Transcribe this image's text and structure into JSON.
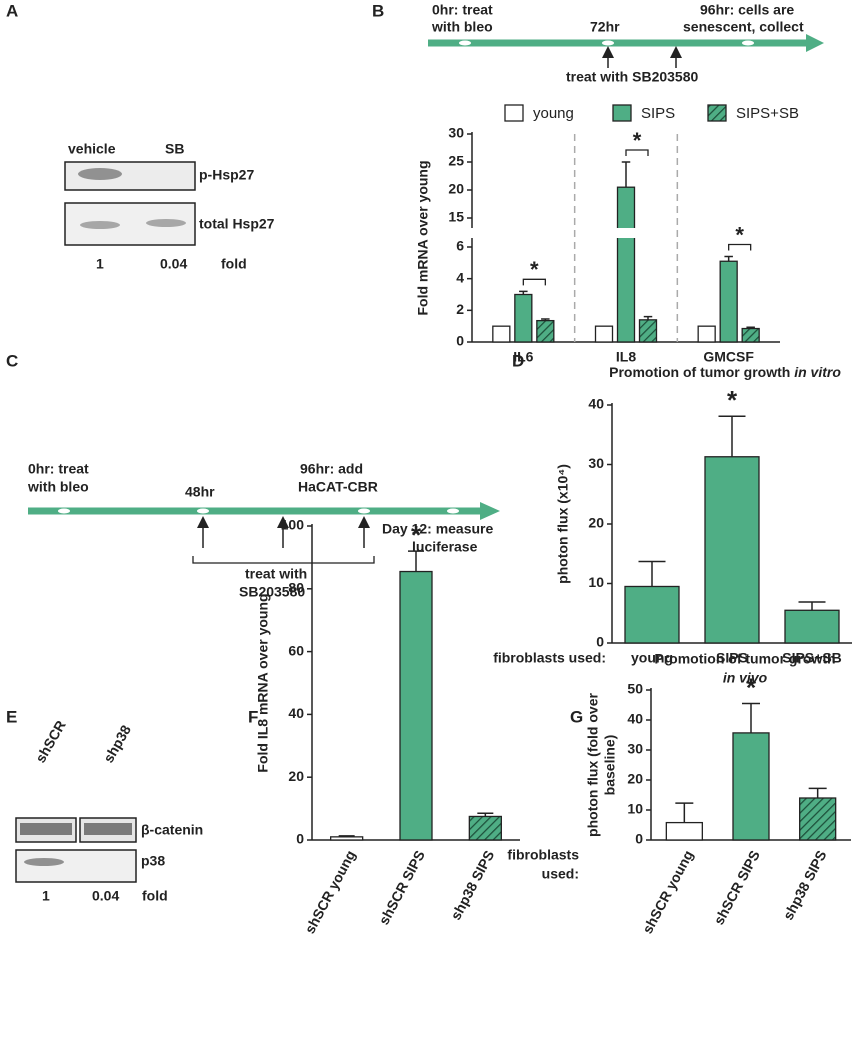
{
  "panel_labels": [
    "A",
    "B",
    "C",
    "D",
    "E",
    "F",
    "G"
  ],
  "panel_a": {
    "lanes": [
      "vehicle",
      "SB"
    ],
    "bands": [
      "p-Hsp27",
      "total Hsp27"
    ],
    "fold_values": [
      1,
      0.04
    ],
    "fold_label": "fold"
  },
  "panel_b_timeline": [
    "0hr: treat",
    "with bleo",
    "72hr",
    "96hr: cells are",
    "senescent, collect",
    "treat with SB203580"
  ],
  "panel_c_timeline": [
    "0hr: treat",
    "with bleo",
    "48hr",
    "96hr: add",
    "HaCAT-CBR",
    "Day 12: measure",
    "luciferase",
    "treat with",
    "SB203580"
  ],
  "panel_e": {
    "lanes": [
      "shSCR",
      "shp38"
    ],
    "bands": [
      "β-catenin",
      "p38"
    ],
    "fold_values": [
      1,
      0.04
    ],
    "fold_label": "fold"
  },
  "chart_data": [
    {
      "type": "bar",
      "ylabel": "Fold mRNA over young",
      "categories": [
        "IL6",
        "IL8",
        "GMCSF"
      ],
      "series": [
        {
          "name": "young",
          "color": "#ffffff",
          "hatched": false,
          "values": [
            1,
            1,
            1
          ]
        },
        {
          "name": "SIPS",
          "color": "#4fae85",
          "hatched": false,
          "values": [
            3.0,
            20.5,
            5.1
          ],
          "errors": [
            0.2,
            4.5,
            0.3
          ]
        },
        {
          "name": "SIPS+SB",
          "color": "#4fae85",
          "hatched": true,
          "values": [
            1.35,
            1.4,
            0.85
          ],
          "errors": [
            0.1,
            0.2,
            0.08
          ]
        }
      ],
      "ylim": [
        0,
        30
      ],
      "yticks": [
        0,
        2,
        4,
        6,
        15,
        20,
        25,
        30
      ],
      "axis_break": [
        6,
        15
      ],
      "annotations": [
        "*",
        "*",
        "*"
      ],
      "legend": "top"
    },
    {
      "type": "bar",
      "title": "Promotion of tumor growth",
      "title_italic": "in vitro",
      "ylabel": [
        "photon flux (x10⁴)"
      ],
      "xlabel": [
        "fibroblasts used:"
      ],
      "categories": [
        "young",
        "SIPS",
        "SIPS+SB"
      ],
      "values": [
        9.5,
        31.3,
        5.5
      ],
      "errors": [
        4.2,
        6.8,
        1.4
      ],
      "colors": [
        "#4fae85",
        "#4fae85",
        "#4fae85"
      ],
      "hatched": [
        false,
        false,
        false
      ],
      "ylim": [
        0,
        40
      ],
      "yticks": [
        0,
        10,
        20,
        30,
        40
      ],
      "annotations": [
        null,
        "*",
        null
      ]
    },
    {
      "type": "bar",
      "ylabel": [
        "Fold IL8 mRNA over young"
      ],
      "categories": [
        "shSCR young",
        "shSCR SIPS",
        "shp38 SIPS"
      ],
      "values": [
        1,
        85.5,
        7.5
      ],
      "errors": [
        0.3,
        6.5,
        1.0
      ],
      "colors": [
        "#ffffff",
        "#4fae85",
        "#4fae85"
      ],
      "hatched": [
        false,
        false,
        true
      ],
      "ylim": [
        0,
        100
      ],
      "yticks": [
        0,
        20,
        40,
        60,
        80,
        100
      ],
      "annotations": [
        null,
        "*",
        null
      ],
      "rotate_labels": true
    },
    {
      "type": "bar",
      "title": "Promotion of tumor growth",
      "title_italic": "in vivo",
      "ylabel": [
        "photon flux (fold over",
        "baseline)"
      ],
      "xlabel": [
        "fibroblasts",
        "used:"
      ],
      "categories": [
        "shSCR young",
        "shSCR SIPS",
        "shp38 SIPS"
      ],
      "values": [
        5.8,
        35.7,
        14
      ],
      "errors": [
        6.5,
        9.8,
        3.2
      ],
      "colors": [
        "#ffffff",
        "#4fae85",
        "#4fae85"
      ],
      "hatched": [
        false,
        false,
        true
      ],
      "ylim": [
        0,
        50
      ],
      "yticks": [
        0,
        10,
        20,
        30,
        40,
        50
      ],
      "annotations": [
        null,
        "*",
        null
      ],
      "rotate_labels": true
    }
  ]
}
